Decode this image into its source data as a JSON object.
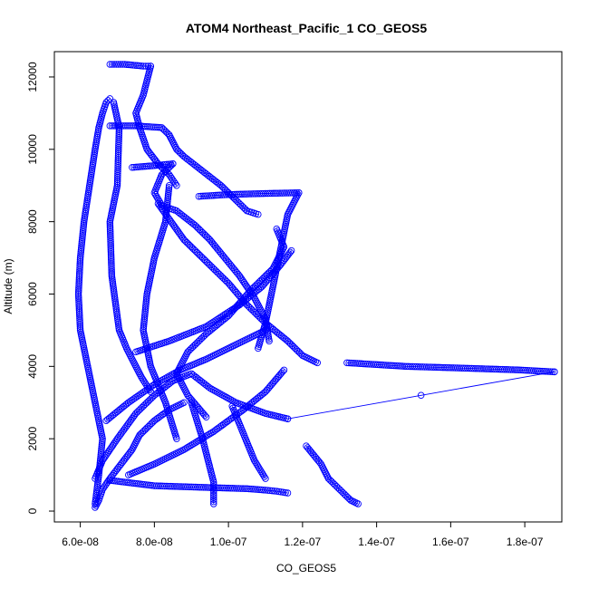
{
  "chart_data": {
    "type": "scatter",
    "title": "ATOM4 Northeast_Pacific_1 CO_GEOS5",
    "xlabel": "CO_GEOS5",
    "ylabel": "Altitude (m)",
    "xlim": [
      5.3e-08,
      1.9e-07
    ],
    "ylim": [
      -300,
      12700
    ],
    "x_ticks": [
      6e-08,
      8e-08,
      1e-07,
      1.2e-07,
      1.4e-07,
      1.6e-07,
      1.8e-07
    ],
    "x_tick_labels": [
      "6.0e-08",
      "8.0e-08",
      "1.0e-07",
      "1.2e-07",
      "1.4e-07",
      "1.6e-07",
      "1.8e-07"
    ],
    "y_ticks": [
      0,
      2000,
      4000,
      6000,
      8000,
      10000,
      12000
    ],
    "y_tick_labels": [
      "0",
      "2000",
      "4000",
      "6000",
      "8000",
      "10000",
      "12000"
    ],
    "marker": "open-circle",
    "color": "#0000ff",
    "series": [
      {
        "x": [
          6.4e-08,
          6.5e-08,
          6.6e-08,
          6.4e-08,
          6.2e-08,
          6.1e-08,
          6e-08,
          5.95e-08,
          6e-08,
          6.1e-08,
          6.25e-08,
          6.4e-08,
          6.5e-08,
          6.6e-08,
          6.7e-08,
          6.8e-08
        ],
        "y": [
          200,
          1000,
          2000,
          3000,
          4000,
          4500,
          5000,
          6000,
          7000,
          8000,
          9000,
          10000,
          10600,
          11000,
          11300,
          11400
        ]
      },
      {
        "x": [
          6.9e-08,
          7.05e-08,
          7e-08,
          6.8e-08,
          6.85e-08,
          7.05e-08,
          7.25e-08,
          7.4e-08,
          7.65e-08,
          7.9e-08
        ],
        "y": [
          11300,
          10600,
          9000,
          8000,
          6500,
          5000,
          4500,
          4200,
          3700,
          3300
        ]
      },
      {
        "x": [
          6.8e-08,
          7.2e-08,
          7.7e-08,
          7.9e-08
        ],
        "y": [
          12350,
          12350,
          12300,
          12300
        ]
      },
      {
        "x": [
          7.9e-08,
          7.7e-08,
          7.5e-08,
          7.6e-08,
          7.8e-08,
          8.1e-08,
          8.4e-08,
          8.6e-08
        ],
        "y": [
          12300,
          11500,
          11000,
          10600,
          10000,
          9600,
          9300,
          9000
        ]
      },
      {
        "x": [
          6.8e-08,
          7.5e-08,
          8.2e-08,
          8.4e-08,
          8.6e-08,
          8.8e-08,
          9.3e-08,
          9.8e-08,
          1.02e-07,
          1.05e-07,
          1.08e-07
        ],
        "y": [
          10650,
          10650,
          10600,
          10400,
          10000,
          9800,
          9400,
          9000,
          8600,
          8300,
          8200
        ]
      },
      {
        "x": [
          7.4e-08,
          8e-08,
          8.5e-08
        ],
        "y": [
          9500,
          9550,
          9600
        ]
      },
      {
        "x": [
          8.5e-08,
          8.2e-08,
          8e-08,
          8.2e-08,
          8.6e-08,
          9.1e-08,
          9.5e-08,
          9.9e-08,
          1.03e-07,
          1.07e-07,
          1.1e-07,
          1.11e-07
        ],
        "y": [
          9600,
          9300,
          8800,
          8450,
          8300,
          7900,
          7500,
          7000,
          6500,
          5900,
          5300,
          4700
        ]
      },
      {
        "x": [
          9.2e-08,
          1e-07,
          1.1e-07,
          1.19e-07
        ],
        "y": [
          8700,
          8750,
          8780,
          8800
        ]
      },
      {
        "x": [
          1.19e-07,
          1.16e-07,
          1.14e-07,
          1.12e-07,
          1.1e-07,
          1.08e-07
        ],
        "y": [
          8800,
          8200,
          7200,
          6200,
          5200,
          4500
        ]
      },
      {
        "x": [
          8.1e-08,
          8.8e-08,
          9.5e-08,
          1e-07,
          1.05e-07,
          1.1e-07,
          1.16e-07,
          1.2e-07,
          1.24e-07
        ],
        "y": [
          8500,
          7500,
          6800,
          6300,
          5700,
          5200,
          4700,
          4300,
          4100
        ]
      },
      {
        "x": [
          1.32e-07,
          1.48e-07,
          1.64e-07,
          1.79e-07,
          1.88e-07
        ],
        "y": [
          4100,
          4000,
          3950,
          3900,
          3850
        ]
      },
      {
        "x": [
          1.88e-07,
          1.52e-07,
          1.16e-07
        ],
        "y": [
          3850,
          3200,
          2550
        ]
      },
      {
        "x": [
          1.16e-07,
          1.1e-07,
          1.02e-07,
          9.5e-08,
          9e-08,
          8.5e-08,
          8e-08,
          7.5e-08,
          7e-08,
          6.6e-08,
          6.4e-08
        ],
        "y": [
          2550,
          2700,
          3000,
          3400,
          3800,
          3600,
          3200,
          2700,
          2000,
          1400,
          900
        ]
      },
      {
        "x": [
          6.8e-08,
          8e-08,
          9.5e-08,
          1.05e-07,
          1.1e-07,
          1.13e-07,
          1.16e-07
        ],
        "y": [
          850,
          700,
          650,
          620,
          580,
          550,
          500
        ]
      },
      {
        "x": [
          1.21e-07,
          1.25e-07,
          1.27e-07,
          1.3e-07,
          1.33e-07,
          1.35e-07
        ],
        "y": [
          1800,
          1300,
          900,
          600,
          300,
          200
        ]
      },
      {
        "x": [
          9.6e-08,
          9.6e-08,
          9.6e-08,
          9.5e-08,
          9.3e-08,
          9e-08
        ],
        "y": [
          200,
          500,
          800,
          1200,
          2000,
          3000
        ]
      },
      {
        "x": [
          7.3e-08,
          8e-08,
          8.8e-08,
          9.6e-08,
          1.04e-07,
          1.1e-07,
          1.15e-07
        ],
        "y": [
          1000,
          1300,
          1700,
          2200,
          2800,
          3300,
          3900
        ]
      },
      {
        "x": [
          7.5e-08,
          8.4e-08,
          9.4e-08,
          1.03e-07,
          1.09e-07,
          1.14e-07,
          1.17e-07
        ],
        "y": [
          4400,
          4700,
          5100,
          5700,
          6200,
          6800,
          7200
        ]
      },
      {
        "x": [
          6.7e-08,
          7.3e-08,
          8e-08,
          8.7e-08,
          9.4e-08,
          1e-07,
          1.06e-07,
          1.1e-07
        ],
        "y": [
          2500,
          3000,
          3500,
          3900,
          4200,
          4500,
          4800,
          5000
        ]
      },
      {
        "x": [
          8.4e-08,
          8.3e-08,
          8e-08,
          7.8e-08,
          7.7e-08,
          7.9e-08,
          8.3e-08,
          8.6e-08
        ],
        "y": [
          9000,
          8000,
          7000,
          6000,
          5000,
          4000,
          3000,
          2000
        ]
      },
      {
        "x": [
          1.13e-07,
          1.15e-07,
          1.12e-07,
          1.06e-07,
          1e-07,
          9.4e-08,
          8.9e-08,
          8.6e-08,
          8.9e-08,
          9.4e-08
        ],
        "y": [
          7800,
          7300,
          6700,
          6100,
          5400,
          4900,
          4400,
          3800,
          3200,
          2600
        ]
      },
      {
        "x": [
          6.4e-08,
          6.5e-08,
          6.6e-08,
          6.8e-08,
          7.1e-08,
          7.4e-08,
          7.6e-08,
          8e-08,
          8.4e-08,
          8.8e-08
        ],
        "y": [
          100,
          300,
          600,
          900,
          1300,
          1700,
          2100,
          2500,
          2800,
          3000
        ]
      },
      {
        "x": [
          1.01e-07,
          1.03e-07,
          1.05e-07,
          1.07e-07,
          1.1e-07
        ],
        "y": [
          2900,
          2400,
          1900,
          1400,
          900
        ]
      }
    ]
  }
}
